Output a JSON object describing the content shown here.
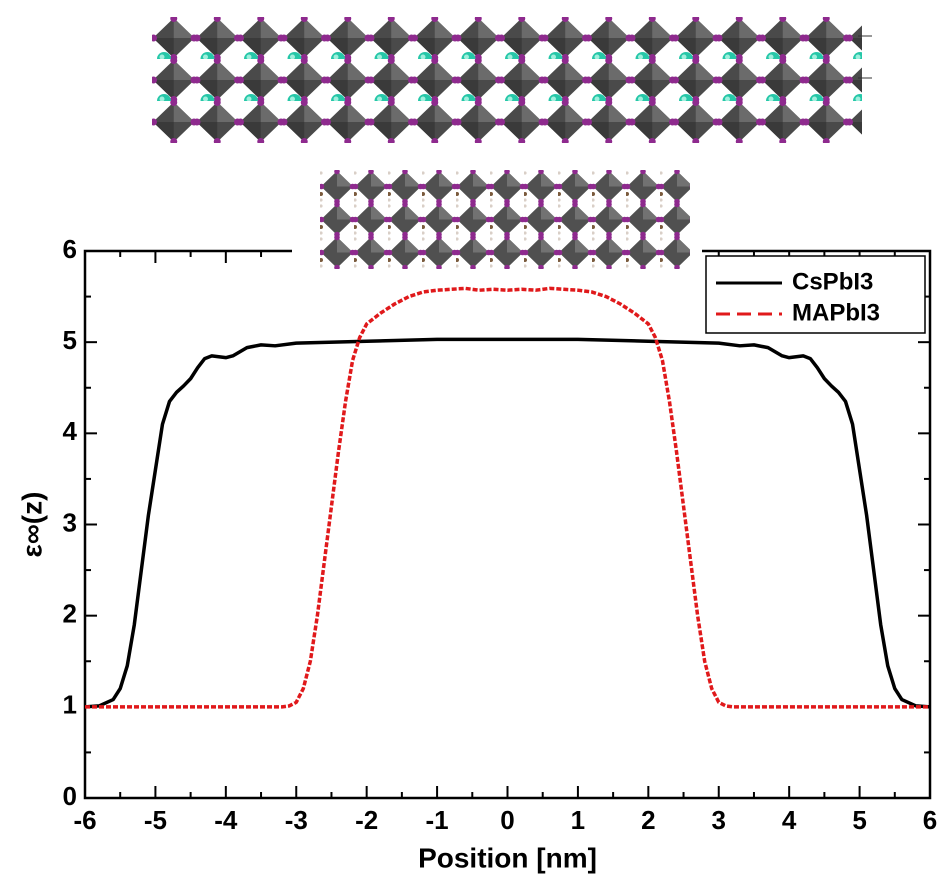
{
  "chart_data": {
    "type": "line",
    "xlabel": "Position [nm]",
    "ylabel": "ε∞(z)",
    "xlim": [
      -6,
      6
    ],
    "ylim": [
      0,
      6
    ],
    "xticks": [
      -6,
      -5,
      -4,
      -3,
      -2,
      -1,
      0,
      1,
      2,
      3,
      4,
      5,
      6
    ],
    "yticks": [
      0,
      1,
      2,
      3,
      4,
      5,
      6
    ],
    "minor_ticks": true,
    "grid": false,
    "legend": "upper right",
    "series": [
      {
        "name": "CsPbI3",
        "color": "#000000",
        "dash": "solid",
        "x": [
          -6,
          -5.8,
          -5.6,
          -5.5,
          -5.4,
          -5.3,
          -5.2,
          -5.1,
          -5,
          -4.9,
          -4.8,
          -4.7,
          -4.6,
          -4.5,
          -4.4,
          -4.3,
          -4.2,
          -4,
          -3.9,
          -3.7,
          -3.5,
          -3.3,
          -3,
          -2,
          -1,
          0,
          1,
          2,
          3,
          3.3,
          3.5,
          3.7,
          3.9,
          4,
          4.2,
          4.3,
          4.4,
          4.5,
          4.6,
          4.7,
          4.8,
          4.9,
          5,
          5.1,
          5.2,
          5.3,
          5.4,
          5.5,
          5.6,
          5.8,
          6
        ],
        "values": [
          1,
          1.01,
          1.08,
          1.2,
          1.45,
          1.9,
          2.5,
          3.1,
          3.6,
          4.1,
          4.35,
          4.45,
          4.52,
          4.6,
          4.72,
          4.82,
          4.85,
          4.83,
          4.85,
          4.94,
          4.97,
          4.96,
          4.99,
          5.01,
          5.03,
          5.03,
          5.03,
          5.01,
          4.99,
          4.96,
          4.97,
          4.94,
          4.85,
          4.83,
          4.85,
          4.82,
          4.72,
          4.6,
          4.52,
          4.45,
          4.35,
          4.1,
          3.6,
          3.1,
          2.5,
          1.9,
          1.45,
          1.2,
          1.08,
          1.01,
          1
        ]
      },
      {
        "name": "MAPbI3",
        "color": "#e0191b",
        "dash": "dashed",
        "x": [
          -6,
          -3.2,
          -3.1,
          -3,
          -2.9,
          -2.8,
          -2.7,
          -2.6,
          -2.5,
          -2.4,
          -2.3,
          -2.2,
          -2.1,
          -2,
          -1.8,
          -1.6,
          -1.4,
          -1.2,
          -1,
          -0.8,
          -0.6,
          -0.4,
          -0.2,
          0,
          0.2,
          0.4,
          0.6,
          0.8,
          1,
          1.2,
          1.4,
          1.6,
          1.8,
          2,
          2.1,
          2.2,
          2.3,
          2.4,
          2.5,
          2.6,
          2.7,
          2.8,
          2.9,
          3,
          3.1,
          3.2,
          6
        ],
        "values": [
          1,
          1,
          1.01,
          1.05,
          1.2,
          1.5,
          2,
          2.6,
          3.2,
          3.8,
          4.35,
          4.8,
          5.05,
          5.2,
          5.32,
          5.42,
          5.5,
          5.55,
          5.57,
          5.58,
          5.59,
          5.57,
          5.58,
          5.57,
          5.58,
          5.57,
          5.59,
          5.58,
          5.57,
          5.55,
          5.5,
          5.42,
          5.32,
          5.2,
          5.05,
          4.8,
          4.35,
          3.8,
          3.2,
          2.6,
          2,
          1.5,
          1.2,
          1.05,
          1.01,
          1,
          1
        ]
      }
    ]
  }
}
